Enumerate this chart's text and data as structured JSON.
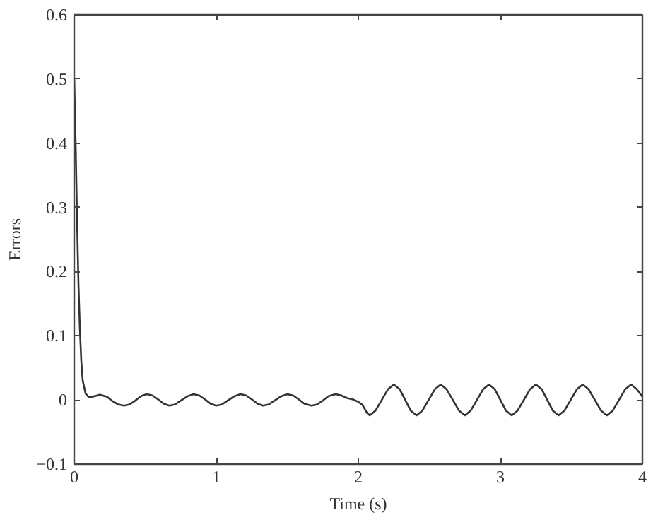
{
  "chart_data": {
    "type": "line",
    "xlabel": "Time (s)",
    "ylabel": "Errors",
    "xlim": [
      0,
      4
    ],
    "ylim": [
      -0.1,
      0.6
    ],
    "xticks": [
      0,
      1,
      2,
      3,
      4
    ],
    "yticks": [
      -0.1,
      0,
      0.1,
      0.2,
      0.3,
      0.4,
      0.5,
      0.6
    ],
    "grid": false,
    "line_style": "solid",
    "series": [
      {
        "color": "#333333",
        "x": [
          0,
          0.01,
          0.02,
          0.03,
          0.04,
          0.05,
          0.06,
          0.08,
          0.1,
          0.13,
          0.18,
          0.23,
          0.27,
          0.31,
          0.35,
          0.39,
          0.43,
          0.47,
          0.51,
          0.55,
          0.59,
          0.63,
          0.67,
          0.71,
          0.75,
          0.8,
          0.84,
          0.88,
          0.92,
          0.96,
          1.0,
          1.04,
          1.08,
          1.13,
          1.17,
          1.21,
          1.25,
          1.29,
          1.33,
          1.37,
          1.41,
          1.46,
          1.5,
          1.54,
          1.58,
          1.62,
          1.67,
          1.71,
          1.75,
          1.79,
          1.84,
          1.88,
          1.92,
          1.96,
          2.0,
          2.03,
          2.06,
          2.08,
          2.12,
          2.165,
          2.21,
          2.25,
          2.29,
          2.33,
          2.37,
          2.41,
          2.45,
          2.495,
          2.54,
          2.58,
          2.62,
          2.665,
          2.71,
          2.75,
          2.79,
          2.835,
          2.88,
          2.92,
          2.96,
          3.0,
          3.04,
          3.08,
          3.12,
          3.165,
          3.21,
          3.25,
          3.29,
          3.33,
          3.37,
          3.41,
          3.45,
          3.495,
          3.54,
          3.58,
          3.62,
          3.665,
          3.71,
          3.75,
          3.79,
          3.835,
          3.88,
          3.92,
          3.96,
          4.0
        ],
        "values": [
          0.5,
          0.4,
          0.28,
          0.18,
          0.11,
          0.06,
          0.03,
          0.01,
          0.005,
          0.005,
          0.008,
          0.005,
          -0.002,
          -0.007,
          -0.009,
          -0.007,
          -0.001,
          0.006,
          0.009,
          0.007,
          0.001,
          -0.006,
          -0.009,
          -0.007,
          -0.001,
          0.006,
          0.009,
          0.007,
          0.001,
          -0.006,
          -0.009,
          -0.007,
          -0.001,
          0.006,
          0.009,
          0.007,
          0.001,
          -0.006,
          -0.009,
          -0.007,
          -0.001,
          0.006,
          0.009,
          0.007,
          0.001,
          -0.006,
          -0.009,
          -0.007,
          -0.001,
          0.006,
          0.009,
          0.007,
          0.003,
          0.001,
          -0.003,
          -0.008,
          -0.02,
          -0.024,
          -0.017,
          0,
          0.017,
          0.024,
          0.017,
          0,
          -0.017,
          -0.024,
          -0.017,
          0,
          0.017,
          0.024,
          0.017,
          0,
          -0.017,
          -0.024,
          -0.017,
          0,
          0.017,
          0.024,
          0.017,
          0,
          -0.017,
          -0.024,
          -0.017,
          0,
          0.017,
          0.024,
          0.017,
          0,
          -0.017,
          -0.024,
          -0.017,
          0,
          0.017,
          0.024,
          0.017,
          0,
          -0.017,
          -0.024,
          -0.017,
          0,
          0.017,
          0.024,
          0.017,
          0.005
        ]
      }
    ]
  }
}
